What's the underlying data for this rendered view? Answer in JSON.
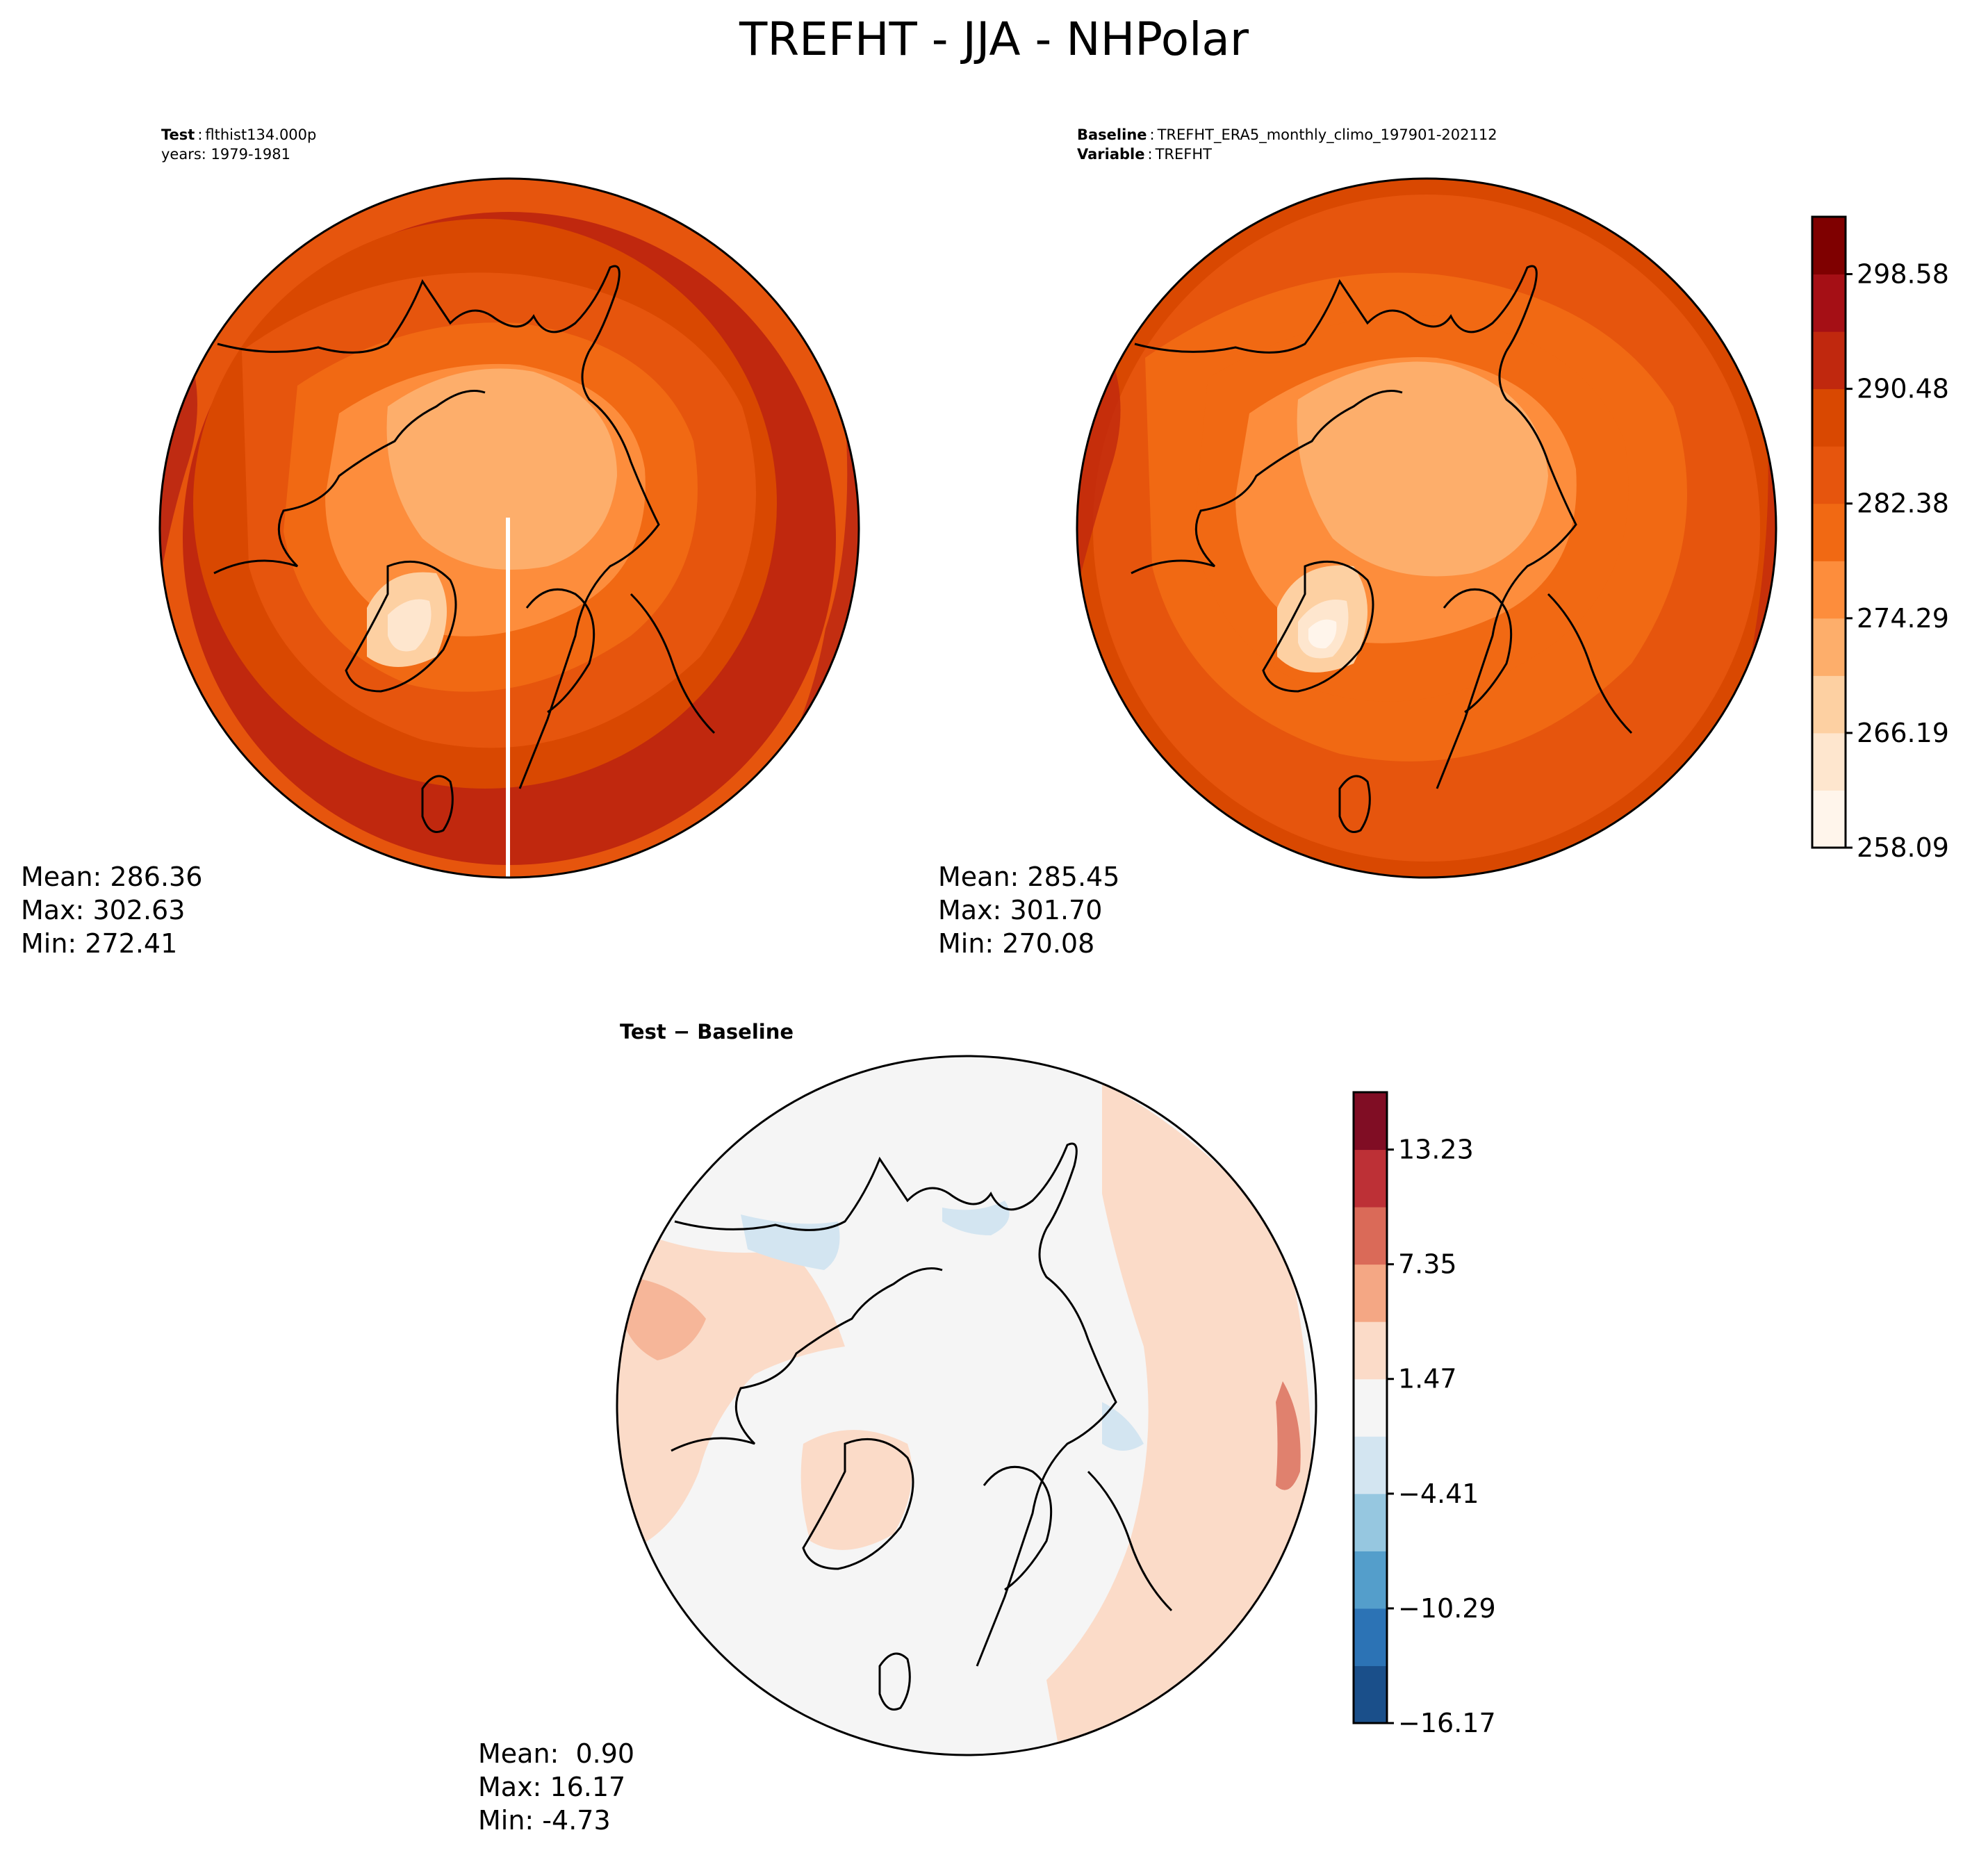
{
  "title": "TREFHT - JJA - NHPolar",
  "panels": {
    "test": {
      "label_key": "Test",
      "label_value": "flthist134.000p",
      "line2": "years: 1979-1981",
      "stats": {
        "mean": "Mean: 286.36",
        "max": "Max: 302.63",
        "min": "Min: 272.41"
      }
    },
    "baseline": {
      "label_key": "Baseline",
      "label_value": "TREFHT_ERA5_monthly_climo_197901-202112",
      "var_key": "Variable",
      "var_value": "TREFHT",
      "stats": {
        "mean": "Mean: 285.45",
        "max": "Max: 301.70",
        "min": "Min: 270.08"
      }
    },
    "diff": {
      "title_a": "Test",
      "title_sep": " − ",
      "title_b": "Baseline",
      "stats": {
        "mean": "Mean:  0.90",
        "max": "Max: 16.17",
        "min": "Min: -4.73"
      }
    }
  },
  "colorbars": {
    "absolute": {
      "ticks": [
        "298.58",
        "290.48",
        "282.38",
        "274.29",
        "266.19",
        "258.09"
      ],
      "colors": [
        "#fff5eb",
        "#fee6ce",
        "#fdd0a2",
        "#fdae6b",
        "#fd8d3c",
        "#f16913",
        "#e6550d",
        "#d94801",
        "#c0280e",
        "#a50f15",
        "#7f0000"
      ]
    },
    "difference": {
      "ticks": [
        "13.23",
        "7.35",
        "1.47",
        "−4.41",
        "−10.29",
        "−16.17"
      ],
      "colors": [
        "#1a4f8a",
        "#2c73b5",
        "#549ecb",
        "#96c7e0",
        "#d3e5f1",
        "#f5f5f5",
        "#fbdbc8",
        "#f4a784",
        "#da6a58",
        "#bd3036",
        "#800d24"
      ]
    }
  },
  "legend": {
    "coastline": "black coastline outlines",
    "projection": "north polar stereographic"
  }
}
